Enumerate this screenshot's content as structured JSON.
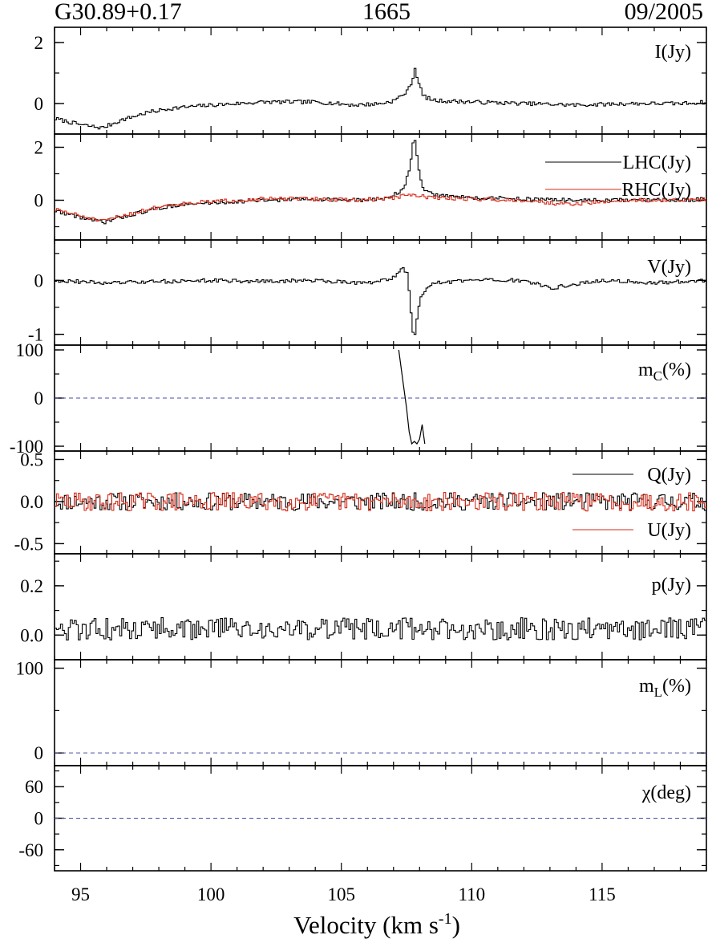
{
  "header": {
    "source": "G30.89+0.17",
    "frequency": "1665",
    "date": "09/2005"
  },
  "colors": {
    "primary": "#000000",
    "secondary": "#d62c1a",
    "zero_line": "#4a4aa8"
  },
  "chart_data": {
    "type": "line",
    "style": "step",
    "xlabel": "Velocity (km s",
    "xlabel_sup": "-1",
    "xlabel_end": ")",
    "xlim": [
      94.0,
      119.0
    ],
    "xticks": [
      95,
      100,
      105,
      110,
      115
    ],
    "xtick_labels": [
      "95",
      "100",
      "105",
      "110",
      "115"
    ],
    "panels": [
      {
        "id": "I",
        "label": "I(Jy)",
        "ylim": [
          -1.0,
          2.5
        ],
        "yticks": [
          0,
          2
        ],
        "ytick_labels": [
          "0",
          "2"
        ],
        "zero_line": false,
        "series": [
          {
            "name": "I(Jy)",
            "color": "#000000",
            "x": [
              94.0,
              95.0,
              95.8,
              96.5,
              97.5,
              98.5,
              100.0,
              102.0,
              104.0,
              105.5,
              106.5,
              107.0,
              107.5,
              107.7,
              107.8,
              107.9,
              108.1,
              108.5,
              110.0,
              112.0,
              114.0,
              116.0,
              118.0,
              119.0
            ],
            "y": [
              -0.5,
              -0.7,
              -0.8,
              -0.55,
              -0.3,
              -0.15,
              -0.05,
              0.05,
              0.05,
              -0.05,
              0.0,
              0.1,
              0.4,
              0.8,
              1.2,
              0.75,
              0.25,
              0.1,
              0.05,
              0.0,
              -0.05,
              0.0,
              0.0,
              0.05
            ]
          }
        ]
      },
      {
        "id": "circ",
        "label": "",
        "ylim": [
          -1.5,
          2.5
        ],
        "yticks": [
          0,
          2
        ],
        "ytick_labels": [
          "0",
          "2"
        ],
        "zero_line": false,
        "series": [
          {
            "name": "LHC(Jy)",
            "color": "#000000",
            "x": [
              94.0,
              95.0,
              95.8,
              96.5,
              97.5,
              98.5,
              100.0,
              102.0,
              104.0,
              105.5,
              106.5,
              107.0,
              107.4,
              107.6,
              107.7,
              107.8,
              107.9,
              108.1,
              108.5,
              110.0,
              112.0,
              114.0,
              116.0,
              118.0,
              119.0
            ],
            "y": [
              -0.4,
              -0.65,
              -0.85,
              -0.65,
              -0.4,
              -0.2,
              -0.1,
              0.0,
              0.05,
              0.0,
              0.05,
              0.2,
              0.5,
              1.3,
              2.1,
              2.2,
              1.4,
              0.4,
              0.2,
              0.1,
              0.05,
              0.0,
              0.0,
              0.0,
              0.05
            ]
          },
          {
            "name": "RHC(Jy)",
            "color": "#d62c1a",
            "x": [
              94.0,
              95.0,
              95.8,
              96.5,
              97.5,
              98.5,
              100.0,
              102.0,
              104.0,
              105.5,
              106.5,
              107.0,
              107.5,
              108.0,
              108.5,
              110.0,
              112.0,
              113.5,
              114.5,
              116.0,
              118.0,
              119.0
            ],
            "y": [
              -0.35,
              -0.6,
              -0.8,
              -0.6,
              -0.35,
              -0.15,
              -0.05,
              0.05,
              0.05,
              0.0,
              0.05,
              0.1,
              0.2,
              0.15,
              0.1,
              0.05,
              0.0,
              -0.15,
              -0.1,
              0.0,
              0.0,
              0.05
            ]
          }
        ]
      },
      {
        "id": "V",
        "label": "V(Jy)",
        "ylim": [
          -1.2,
          0.75
        ],
        "yticks": [
          -1,
          0
        ],
        "ytick_labels": [
          "-1",
          "0"
        ],
        "zero_line": false,
        "series": [
          {
            "name": "V(Jy)",
            "color": "#000000",
            "x": [
              94.0,
              96.0,
              98.0,
              100.0,
              102.0,
              104.0,
              106.0,
              107.0,
              107.3,
              107.5,
              107.6,
              107.7,
              107.8,
              107.9,
              108.0,
              108.2,
              108.6,
              110.0,
              112.0,
              113.0,
              113.5,
              115.0,
              117.0,
              119.0
            ],
            "y": [
              0.0,
              -0.05,
              -0.02,
              0.0,
              -0.02,
              0.0,
              -0.05,
              0.05,
              0.25,
              0.1,
              -0.4,
              -0.95,
              -1.0,
              -0.6,
              -0.3,
              -0.15,
              -0.05,
              0.0,
              0.0,
              -0.15,
              -0.1,
              0.0,
              -0.05,
              0.0
            ]
          }
        ]
      },
      {
        "id": "mc",
        "label": "m",
        "label_sub": "C",
        "label_end": "(%)",
        "ylim": [
          -110,
          110
        ],
        "yticks": [
          -100,
          0,
          100
        ],
        "ytick_labels": [
          "-100",
          "0",
          "100"
        ],
        "zero_line": true,
        "series": [
          {
            "name": "m_C",
            "color": "#000000",
            "x": [
              107.2,
              107.35,
              107.5,
              107.6,
              107.7,
              107.8,
              107.9,
              108.0,
              108.1,
              108.2
            ],
            "y": [
              100,
              40,
              -20,
              -70,
              -95,
              -90,
              -95,
              -85,
              -55,
              -95
            ]
          }
        ]
      },
      {
        "id": "QU",
        "label": "",
        "ylim": [
          -0.62,
          0.6
        ],
        "yticks": [
          -0.5,
          0.0,
          0.5
        ],
        "ytick_labels": [
          "-0.5",
          "0.0",
          "0.5"
        ],
        "zero_line": false,
        "series": [
          {
            "name": "Q(Jy)",
            "color": "#000000",
            "noise": 0.075,
            "seed": 11
          },
          {
            "name": "U(Jy)",
            "color": "#d62c1a",
            "noise": 0.08,
            "seed": 29
          }
        ]
      },
      {
        "id": "p",
        "label": "p(Jy)",
        "ylim": [
          -0.1,
          0.33
        ],
        "yticks": [
          0.0,
          0.2
        ],
        "ytick_labels": [
          "0.0",
          "0.2"
        ],
        "zero_line": false,
        "series": [
          {
            "name": "p(Jy)",
            "color": "#000000",
            "noise": 0.07,
            "seed": 5,
            "positive": true
          }
        ]
      },
      {
        "id": "mL",
        "label": "m",
        "label_sub": "L",
        "label_end": "(%)",
        "ylim": [
          -15,
          110
        ],
        "yticks": [
          0,
          100
        ],
        "ytick_labels": [
          "0",
          "100"
        ],
        "zero_line": true,
        "series": []
      },
      {
        "id": "chi",
        "label": "χ(deg)",
        "ylim": [
          -100,
          100
        ],
        "yticks": [
          -60,
          0,
          60
        ],
        "ytick_labels": [
          "-60",
          "0",
          "60"
        ],
        "zero_line": true,
        "series": []
      }
    ]
  }
}
